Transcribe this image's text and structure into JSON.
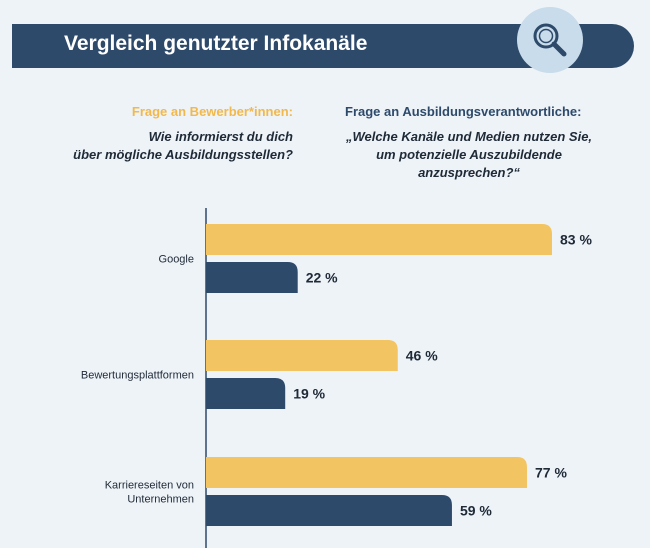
{
  "header": {
    "title": "Vergleich genutzter Infokanäle",
    "icon": "search-icon"
  },
  "questions": {
    "applicants": {
      "heading": "Frage an Bewerber*innen:",
      "text_line1": "Wie informierst du dich",
      "text_line2": "über mögliche Ausbildungsstellen?"
    },
    "trainers": {
      "heading": "Frage an Ausbildungsverantwortliche:",
      "text_line1": "„Welche Kanäle und Medien nutzen Sie,",
      "text_line2": "um potenzielle Auszubildende",
      "text_line3": "anzusprechen?“"
    }
  },
  "colors": {
    "applicants": "#f2c462",
    "trainers": "#2e4a6b",
    "banner": "#2e4a6b"
  },
  "chart_data": {
    "type": "bar",
    "orientation": "horizontal",
    "categories": [
      [
        "Google"
      ],
      [
        "Bewertungsplattformen"
      ],
      [
        "Karriereseiten von",
        "Unternehmen"
      ]
    ],
    "series": [
      {
        "values": [
          83,
          46,
          77
        ],
        "labels": [
          "83 %",
          "46 %",
          "77 %"
        ],
        "color": "#f2c462"
      },
      {
        "values": [
          22,
          19,
          59
        ],
        "labels": [
          "22 %",
          "19 %",
          "59 %"
        ],
        "color": "#2e4a6b"
      }
    ],
    "xlim": [
      0,
      100
    ]
  }
}
